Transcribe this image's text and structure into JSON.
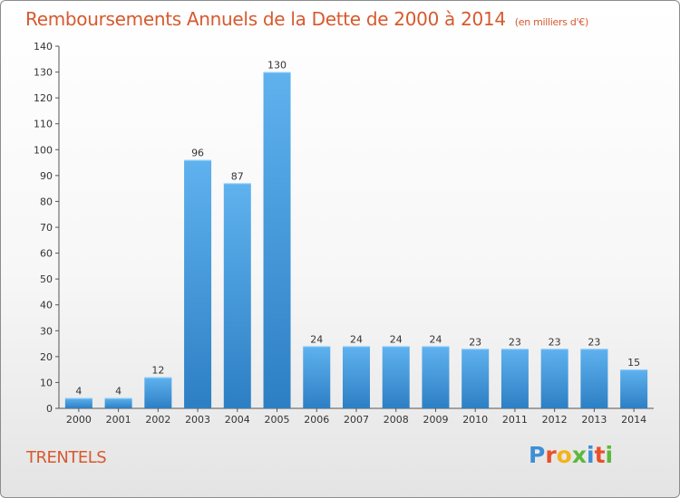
{
  "chart_data": {
    "type": "bar",
    "title": "Remboursements Annuels de la Dette de 2000 à 2014",
    "unit_note": "(en milliers d'€)",
    "categories": [
      "2000",
      "2001",
      "2002",
      "2003",
      "2004",
      "2005",
      "2006",
      "2007",
      "2008",
      "2009",
      "2010",
      "2011",
      "2012",
      "2013",
      "2014"
    ],
    "values": [
      4,
      4,
      12,
      96,
      87,
      130,
      24,
      24,
      24,
      24,
      23,
      23,
      23,
      23,
      15
    ],
    "ylim": [
      0,
      140
    ],
    "yticks": [
      0,
      10,
      20,
      30,
      40,
      50,
      60,
      70,
      80,
      90,
      100,
      110,
      120,
      130,
      140
    ],
    "grid": false,
    "bar_color": "#4a9fe0",
    "title_color": "#d65a2e"
  },
  "footer": {
    "commune": "TRENTELS",
    "logo_text": "Proxiti",
    "logo_colors": [
      "#3d8fd6",
      "#e8502a",
      "#f2b418",
      "#5cb83a",
      "#3d8fd6",
      "#e8502a",
      "#5cb83a"
    ]
  }
}
